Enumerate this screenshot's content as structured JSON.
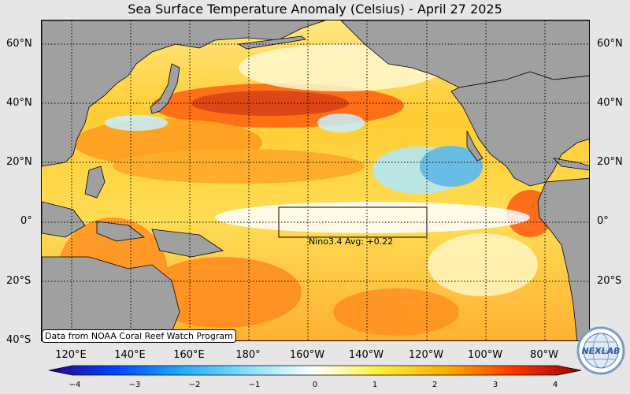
{
  "title": "Sea Surface Temperature Anomaly (Celsius) - April 27 2025",
  "latitude_labels": [
    "60°N",
    "40°N",
    "20°N",
    "0°",
    "20°S",
    "40°S"
  ],
  "longitude_labels": [
    "120°E",
    "140°E",
    "160°E",
    "180°",
    "160°W",
    "140°W",
    "120°W",
    "100°W",
    "80°W"
  ],
  "nino_box": {
    "label": "Nino3.4 Avg: +0.22",
    "lon_range": [
      "170°W",
      "120°W"
    ],
    "lat_range": [
      "5°S",
      "5°N"
    ]
  },
  "credit": "Data from NOAA Coral Reef Watch Program",
  "colorbar": {
    "ticks": [
      "−4",
      "−3",
      "−2",
      "−1",
      "0",
      "1",
      "2",
      "3",
      "4"
    ],
    "min": -4,
    "max": 4,
    "colors": [
      "#2a0090",
      "#0044ff",
      "#22aaff",
      "#88e0ff",
      "#ffffff",
      "#ffee33",
      "#ffaa00",
      "#ff3300",
      "#990000"
    ]
  },
  "colors": {
    "land": "#a0a0a0",
    "sea_base": "#ffd030",
    "grid": "#000000"
  },
  "logo": {
    "text": "NEXLAB",
    "icon": "globe-icon"
  }
}
